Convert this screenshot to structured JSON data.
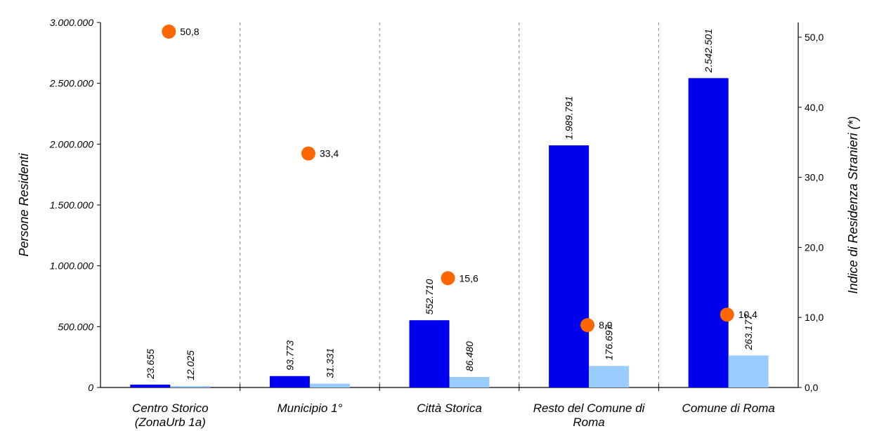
{
  "chart_data": {
    "type": "bar",
    "categories": [
      [
        "Centro Storico",
        "(ZonaUrb 1a)"
      ],
      [
        "Municipio 1°"
      ],
      [
        "Città Storica"
      ],
      [
        "Resto del Comune di",
        "Roma"
      ],
      [
        "Comune di Roma"
      ]
    ],
    "series": [
      {
        "axis": "left",
        "color": "#0000ee",
        "values": [
          23655,
          93773,
          552710,
          1989791,
          2542501
        ],
        "labels": [
          "23.655",
          "93.773",
          "552.710",
          "1.989.791",
          "2.542.501"
        ]
      },
      {
        "axis": "left",
        "color": "#99ccff",
        "values": [
          12025,
          31331,
          86480,
          176697,
          263177
        ],
        "labels": [
          "12.025",
          "31.331",
          "86.480",
          "176.697",
          "263.177"
        ]
      },
      {
        "axis": "right",
        "type": "scatter",
        "color": "#ff6600",
        "values": [
          50.8,
          33.4,
          15.6,
          8.9,
          10.4
        ],
        "labels": [
          "50,8",
          "33,4",
          "15,6",
          "8,9",
          "10,4"
        ]
      }
    ],
    "ylabel": "Persone Residenti",
    "y2label": "Indice di Residenza Stranieri (*)",
    "ylim": [
      0,
      3000000
    ],
    "y2lim": [
      0,
      50
    ],
    "yticks": [
      "0",
      "500.000",
      "1.000.000",
      "1.500.000",
      "2.000.000",
      "2.500.000",
      "3.000.000"
    ],
    "y2ticks": [
      "0,0",
      "10,0",
      "20,0",
      "30,0",
      "40,0",
      "50,0"
    ],
    "grid": "vertical dashed separators between categories",
    "legend": "none"
  }
}
